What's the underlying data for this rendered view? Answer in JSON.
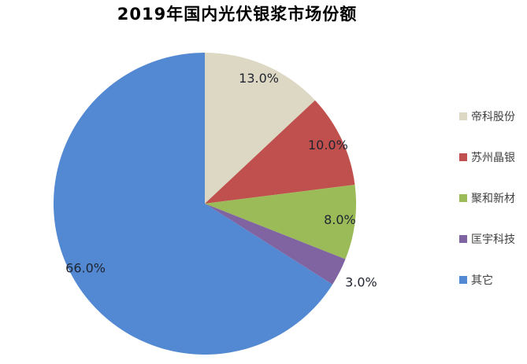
{
  "title": "2019年国内光伏银浆市场份额",
  "chart_data": {
    "type": "pie",
    "title": "2019年国内光伏银浆市场份额",
    "start_angle_deg": 0,
    "direction": "clockwise",
    "legend_position": "right",
    "label_color": "#1f2430",
    "slices": [
      {
        "label": "帝科股份",
        "value": 13.0,
        "display_label": "13.0%",
        "color": "#ddd8c3",
        "label_outside": false
      },
      {
        "label": "苏州晶银",
        "value": 10.0,
        "display_label": "10.0%",
        "color": "#c0504d",
        "label_outside": false
      },
      {
        "label": "聚和新材",
        "value": 8.0,
        "display_label": "8.0%",
        "color": "#9bbb59",
        "label_outside": false
      },
      {
        "label": "匡宇科技",
        "value": 3.0,
        "display_label": "3.0%",
        "color": "#8064a2",
        "label_outside": true
      },
      {
        "label": "其它",
        "value": 66.0,
        "display_label": "66.0%",
        "color": "#5289d2",
        "label_outside": false
      }
    ]
  }
}
